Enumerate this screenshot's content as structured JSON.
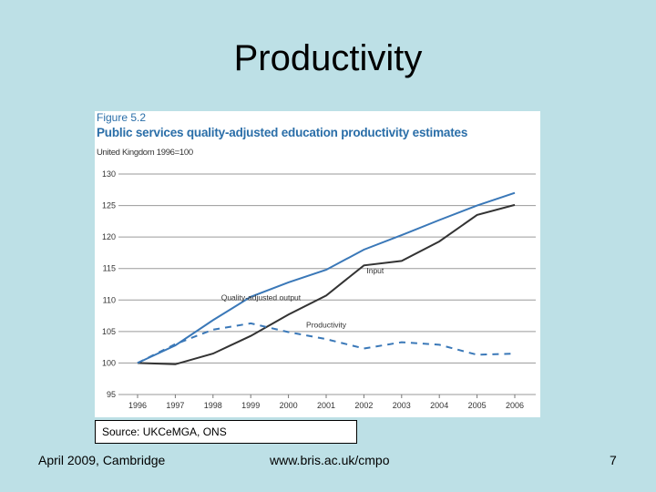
{
  "slide": {
    "title": "Productivity",
    "source": "Source: UKCeMGA, ONS",
    "footer_left": "April 2009, Cambridge",
    "footer_center": "www.bris.ac.uk/cmpo",
    "page_number": "7"
  },
  "chart_data": {
    "type": "line",
    "figure_label": "Figure 5.2",
    "title": "Public services quality-adjusted education productivity estimates",
    "subtitle": "United Kingdom 1996=100",
    "x": [
      1996,
      1997,
      1998,
      1999,
      2000,
      2001,
      2002,
      2003,
      2004,
      2005,
      2006
    ],
    "ylim": [
      95,
      130
    ],
    "yticks": [
      95,
      100,
      105,
      110,
      115,
      120,
      125,
      130
    ],
    "grid": true,
    "series": [
      {
        "name": "Quality-adjusted output",
        "color": "#3a78b8",
        "style": "solid",
        "values": [
          100,
          102.8,
          106.8,
          110.5,
          112.8,
          114.8,
          118,
          120.3,
          122.7,
          125,
          127
        ]
      },
      {
        "name": "Input",
        "color": "#333333",
        "style": "solid",
        "values": [
          100,
          99.8,
          101.5,
          104.3,
          107.7,
          110.7,
          115.5,
          116.2,
          119.3,
          123.5,
          125.1
        ]
      },
      {
        "name": "Productivity",
        "color": "#3a78b8",
        "style": "dashed",
        "values": [
          100,
          103,
          105.3,
          106.3,
          104.9,
          103.8,
          102.3,
          103.3,
          102.9,
          101.3,
          101.5
        ]
      }
    ]
  }
}
